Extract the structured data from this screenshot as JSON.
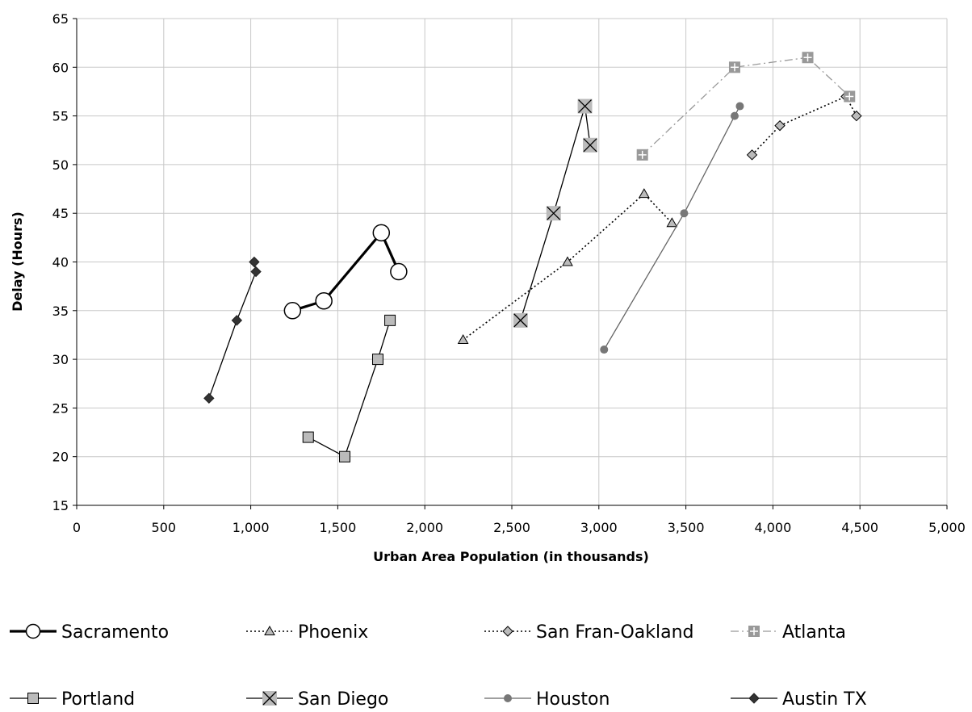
{
  "chart_data": {
    "type": "scatter",
    "xlabel": "Urban Area Population (in thousands)",
    "ylabel": "Delay (Hours)",
    "xlim": [
      0,
      5000
    ],
    "ylim": [
      15,
      65
    ],
    "x_ticks": [
      0,
      500,
      1000,
      1500,
      2000,
      2500,
      3000,
      3500,
      4000,
      4500,
      5000
    ],
    "x_tick_labels": [
      "0",
      "500",
      "1,000",
      "1,500",
      "2,000",
      "2,500",
      "3,000",
      "3,500",
      "4,000",
      "4,500",
      "5,000"
    ],
    "y_ticks": [
      15,
      20,
      25,
      30,
      35,
      40,
      45,
      50,
      55,
      60,
      65
    ],
    "y_tick_labels": [
      "15",
      "20",
      "25",
      "30",
      "35",
      "40",
      "45",
      "50",
      "55",
      "60",
      "65"
    ],
    "grid": true,
    "legend_position": "bottom",
    "series": [
      {
        "name": "Sacramento",
        "marker": "circle-open",
        "line": "solid-thick",
        "color": "#000000",
        "points": [
          [
            1240,
            35
          ],
          [
            1420,
            36
          ],
          [
            1750,
            43
          ],
          [
            1850,
            39
          ]
        ]
      },
      {
        "name": "Phoenix",
        "marker": "triangle",
        "line": "dotted",
        "color": "#000000",
        "points": [
          [
            2220,
            32
          ],
          [
            2820,
            40
          ],
          [
            3260,
            47
          ],
          [
            3420,
            44
          ]
        ]
      },
      {
        "name": "San Fran-Oakland",
        "marker": "diamond-gray",
        "line": "dotted",
        "color": "#000000",
        "points": [
          [
            3880,
            51
          ],
          [
            4040,
            54
          ],
          [
            4420,
            57
          ],
          [
            4480,
            55
          ]
        ]
      },
      {
        "name": "Atlanta",
        "marker": "square-plus",
        "line": "dashdot",
        "color": "#999999",
        "points": [
          [
            3250,
            51
          ],
          [
            3780,
            60
          ],
          [
            4200,
            61
          ],
          [
            4440,
            57
          ]
        ]
      },
      {
        "name": "Portland",
        "marker": "square-gray",
        "line": "solid",
        "color": "#000000",
        "points": [
          [
            1330,
            22
          ],
          [
            1540,
            20
          ],
          [
            1730,
            30
          ],
          [
            1800,
            34
          ]
        ]
      },
      {
        "name": "San Diego",
        "marker": "square-x",
        "line": "solid",
        "color": "#000000",
        "points": [
          [
            2550,
            34
          ],
          [
            2740,
            45
          ],
          [
            2920,
            56
          ],
          [
            2950,
            52
          ]
        ]
      },
      {
        "name": "Houston",
        "marker": "dot-gray",
        "line": "solid",
        "color": "#666666",
        "points": [
          [
            3030,
            31
          ],
          [
            3490,
            45
          ],
          [
            3780,
            55
          ],
          [
            3810,
            56
          ]
        ]
      },
      {
        "name": "Austin TX",
        "marker": "diamond-black",
        "line": "solid",
        "color": "#000000",
        "points": [
          [
            760,
            26
          ],
          [
            920,
            34
          ],
          [
            1030,
            39
          ],
          [
            1020,
            40
          ]
        ]
      }
    ]
  }
}
